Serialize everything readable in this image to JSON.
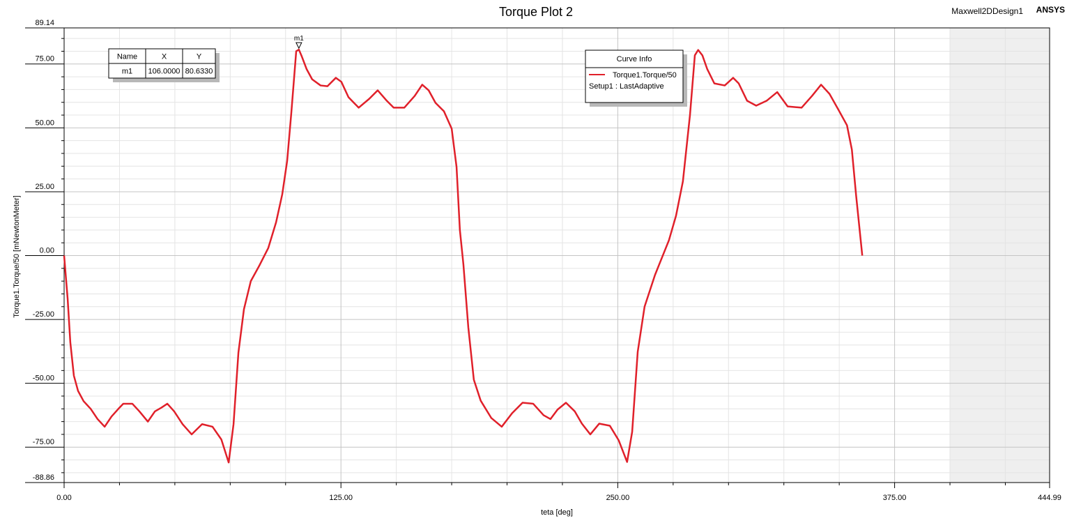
{
  "chart_data": {
    "type": "line",
    "title": "Torque Plot 2",
    "design_name": "Maxwell2DDesign1",
    "brand": "ANSYS",
    "x_label": "teta [deg]",
    "y_label": "Torque1.Torque/50 [mNewtonMeter]",
    "xlim": [
      0,
      444.99
    ],
    "ylim": [
      -88.86,
      89.14
    ],
    "xticks": [
      {
        "value": 0,
        "label": "0.00"
      },
      {
        "value": 125,
        "label": "125.00"
      },
      {
        "value": 250,
        "label": "250.00"
      },
      {
        "value": 375,
        "label": "375.00"
      },
      444.99
    ],
    "yticks": [
      -88.86,
      {
        "value": -75,
        "label": "-75.00"
      },
      {
        "value": -50,
        "label": "-50.00"
      },
      {
        "value": -25,
        "label": "-25.00"
      },
      {
        "value": 0,
        "label": "0.00"
      },
      {
        "value": 25,
        "label": "25.00"
      },
      {
        "value": 50,
        "label": "50.00"
      },
      {
        "value": 75,
        "label": "75.00"
      },
      89.14
    ],
    "x_minor_ticks": [
      25,
      50,
      75,
      100,
      150,
      175,
      200,
      225,
      275,
      300,
      325,
      350,
      400,
      425
    ],
    "y_minor_ticks": [
      -85,
      -80,
      -70,
      -65,
      -60,
      -55,
      -45,
      -40,
      -35,
      -30,
      -20,
      -15,
      -10,
      -5,
      5,
      10,
      15,
      20,
      30,
      35,
      40,
      45,
      55,
      60,
      65,
      70,
      80,
      85
    ],
    "grid": true,
    "shaded_region": [
      400,
      444.99
    ],
    "legend_title": "Curve Info",
    "series": [
      {
        "name": "Torque1.Torque/50",
        "source": "Setup1 : LastAdaptive",
        "color": "#e0202a",
        "x": [
          0,
          1.6,
          2.8,
          4.4,
          6.3,
          8.8,
          12,
          15.1,
          18.3,
          21.4,
          24.5,
          26.7,
          30.8,
          34,
          37.8,
          41,
          44,
          46.6,
          49.7,
          53.5,
          57.6,
          62.3,
          67,
          71,
          74.3,
          76.5,
          78.7,
          81.2,
          84.3,
          88.1,
          92.2,
          95.7,
          98.5,
          100.7,
          102.6,
          104.8,
          106,
          107.3,
          109.5,
          112,
          115.8,
          118.9,
          122.7,
          125.2,
          128.4,
          133,
          137.8,
          141.6,
          145.7,
          148.8,
          153.6,
          158.3,
          161.7,
          164.6,
          167.7,
          171.5,
          175,
          177.2,
          178.7,
          180.3,
          182.5,
          185,
          188.1,
          192.9,
          197.6,
          202.3,
          207,
          211.8,
          216.5,
          219.6,
          222.8,
          226.6,
          230.6,
          233.8,
          237.6,
          241.6,
          246.4,
          250.4,
          254.2,
          256.5,
          259,
          262.1,
          266.8,
          273.1,
          276.3,
          279.4,
          282.6,
          284.8,
          286.3,
          288.2,
          290.4,
          293.6,
          298.3,
          302.1,
          304.6,
          308.4,
          312.5,
          317.2,
          322,
          326.7,
          333,
          337.7,
          341.8,
          345.6,
          349.7,
          353.5,
          355.7,
          357.6,
          360.4
        ],
        "values": [
          0,
          -17,
          -34,
          -47,
          -53,
          -57,
          -60,
          -64,
          -67,
          -63,
          -60,
          -58,
          -58,
          -61,
          -65,
          -61,
          -59.5,
          -58,
          -61,
          -66,
          -70,
          -66,
          -67,
          -72,
          -81,
          -66,
          -38,
          -21,
          -10,
          -4,
          3,
          13,
          24,
          37,
          56,
          80,
          80.633,
          78,
          73,
          69,
          66.6,
          66.3,
          69.6,
          68,
          62,
          57.9,
          61.4,
          64.7,
          60.6,
          57.9,
          57.9,
          62.5,
          66.9,
          64.7,
          59.8,
          56.5,
          49.7,
          34.7,
          10,
          -3.5,
          -28,
          -48.6,
          -56.8,
          -63.6,
          -67,
          -61.7,
          -57.6,
          -58,
          -62.5,
          -64,
          -60.3,
          -57.6,
          -61,
          -65.8,
          -70,
          -65.8,
          -66.6,
          -72.3,
          -80.8,
          -69,
          -37.7,
          -20,
          -7.6,
          6,
          15.6,
          29,
          55,
          78.4,
          80.5,
          78.4,
          73,
          67.4,
          66.6,
          69.6,
          67.4,
          60.6,
          58.7,
          60.6,
          64,
          58.4,
          57.9,
          62.5,
          66.9,
          63.3,
          57,
          51,
          41.5,
          23.7,
          0
        ]
      }
    ],
    "marker_table_headers": [
      "Name",
      "X",
      "Y"
    ],
    "markers": [
      {
        "name": "m1",
        "x": 106,
        "y": 80.633,
        "value_labels": [
          "106.0000",
          "80.6330"
        ]
      }
    ]
  }
}
